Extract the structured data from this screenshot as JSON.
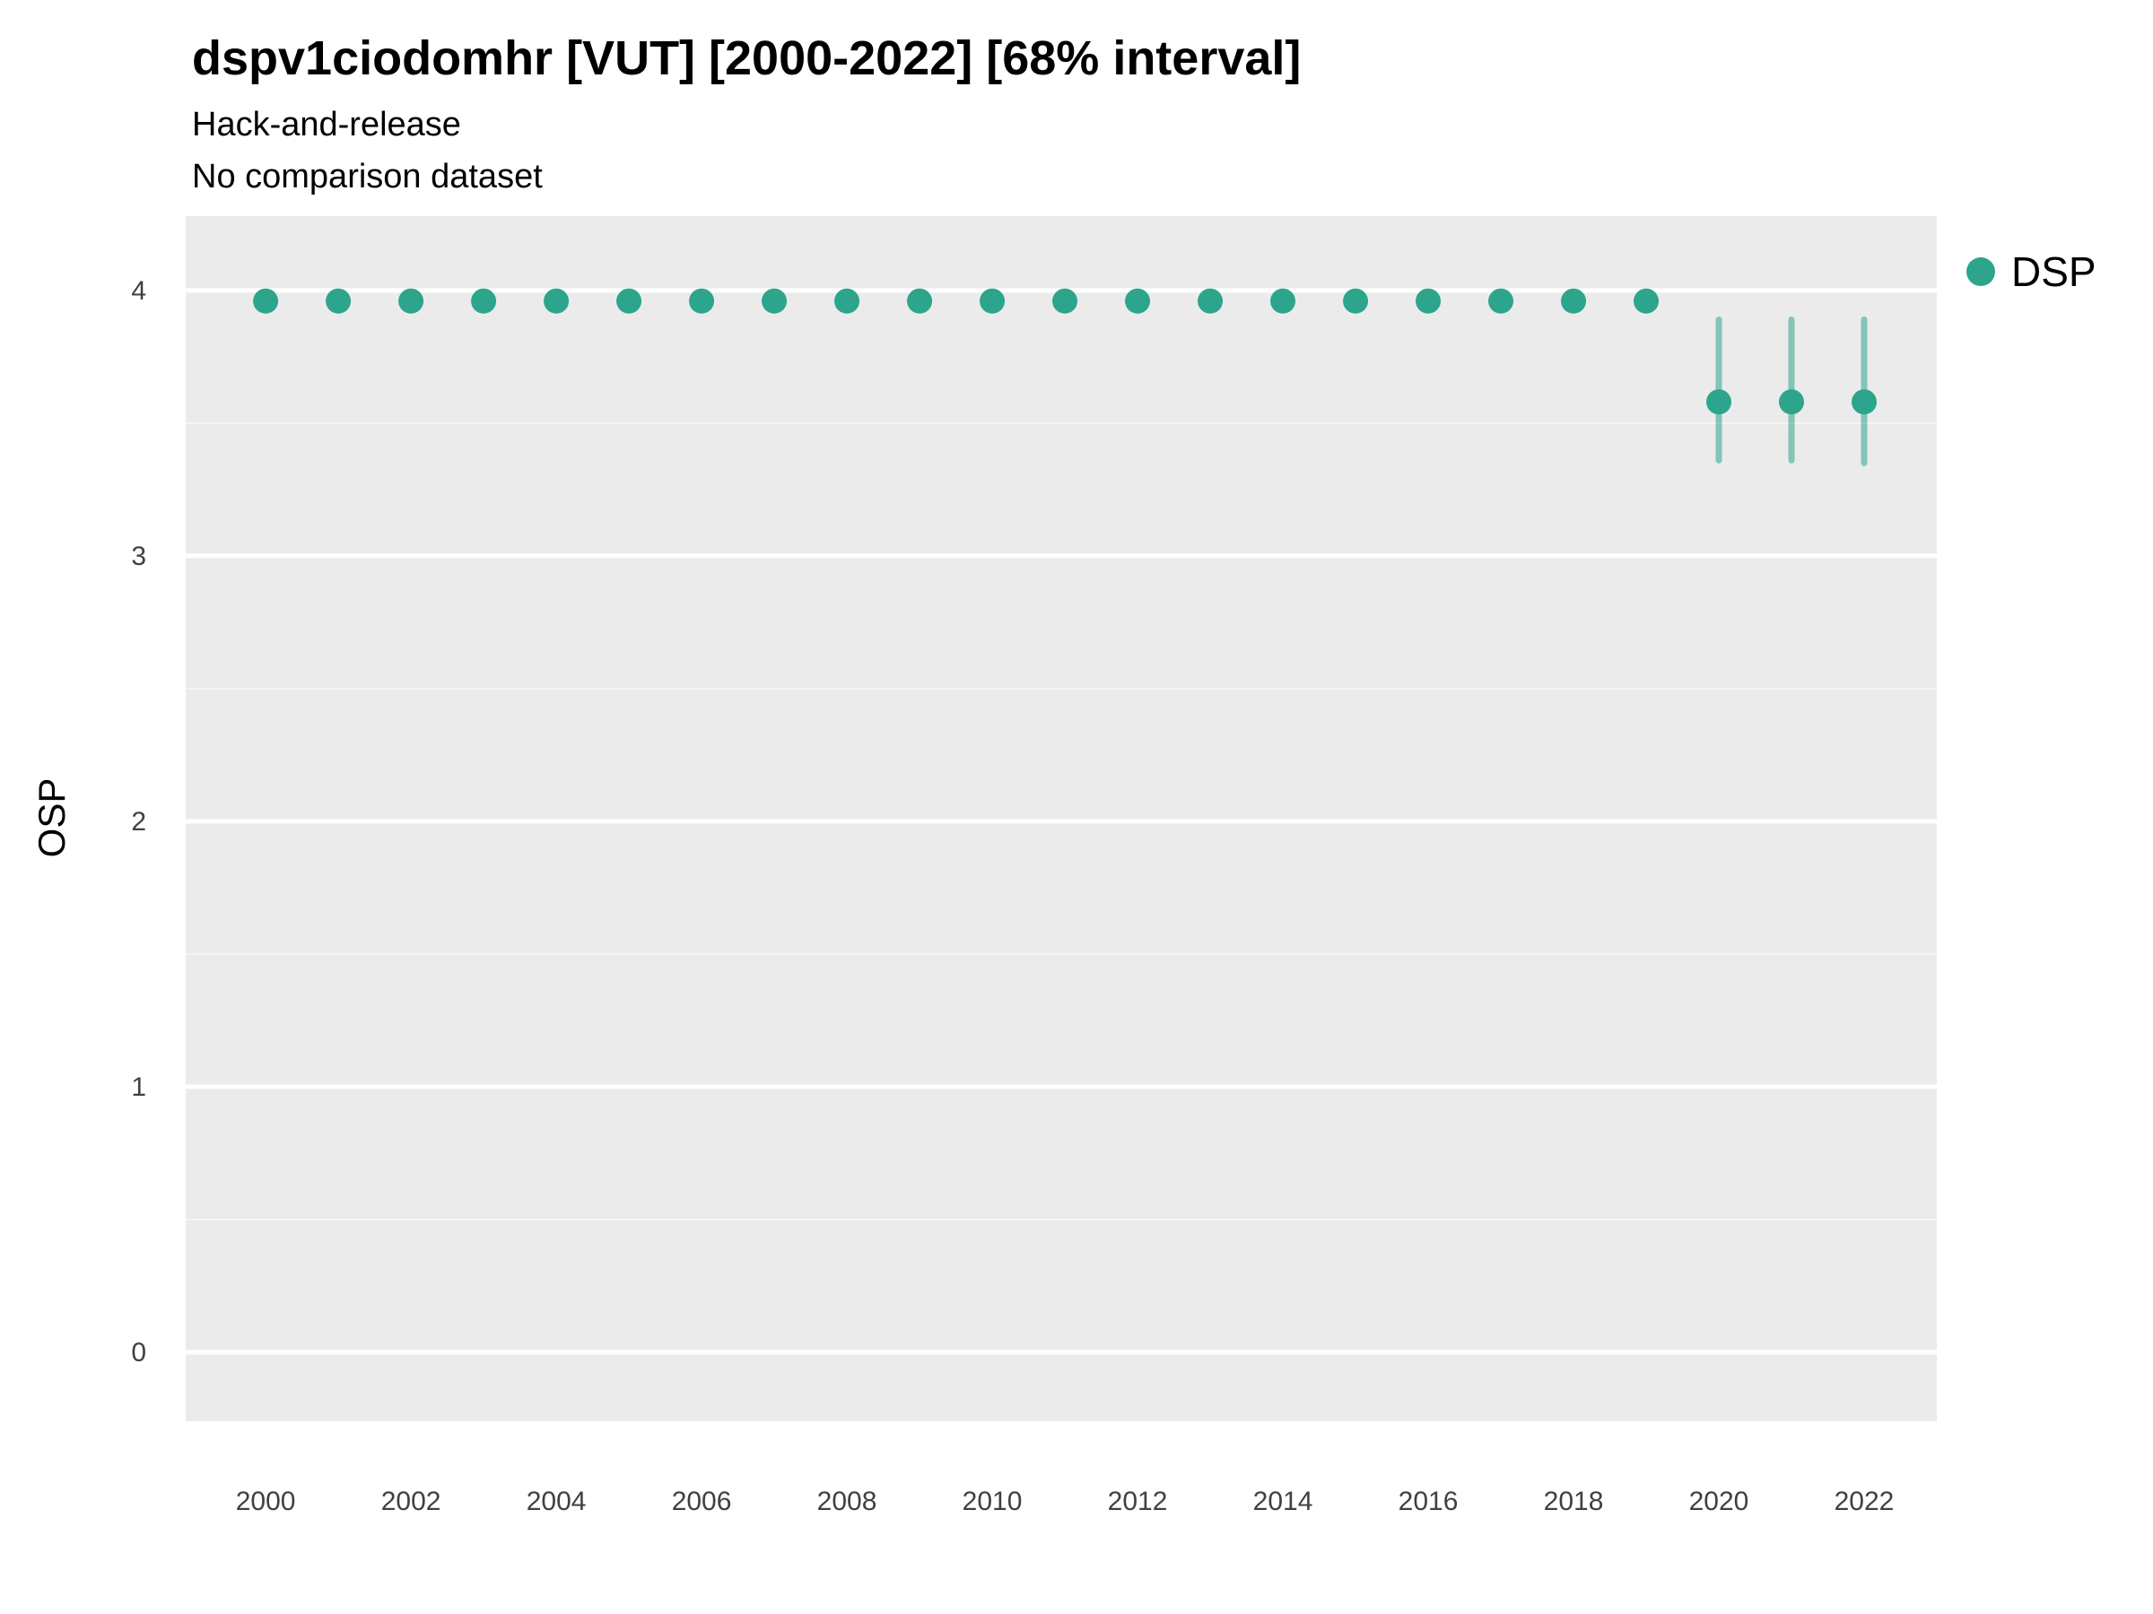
{
  "header": {
    "title": "dspv1ciodomhr [VUT] [2000-2022] [68% interval]",
    "subtitle_line1": "Hack-and-release",
    "subtitle_line2": "No comparison dataset"
  },
  "axes": {
    "y_label": "OSP",
    "x_label": ""
  },
  "legend": {
    "items": [
      {
        "label": "DSP",
        "color": "#2CA58C"
      }
    ]
  },
  "chart_data": {
    "type": "scatter",
    "title": "dspv1ciodomhr [VUT] [2000-2022] [68% interval]",
    "subtitle": [
      "Hack-and-release",
      "No comparison dataset"
    ],
    "xlabel": "",
    "ylabel": "OSP",
    "interval_level": "68%",
    "grid": "white-on-gray",
    "panel_background": "#EBEBEB",
    "legend_position": "right-top",
    "xlim": [
      1998.9,
      2023.0
    ],
    "ylim": [
      -0.26,
      4.28
    ],
    "xticks": [
      2000,
      2002,
      2004,
      2006,
      2008,
      2010,
      2012,
      2014,
      2016,
      2018,
      2020,
      2022
    ],
    "yticks": [
      0,
      1,
      2,
      3,
      4
    ],
    "series": [
      {
        "name": "DSP",
        "color": "#2CA58C",
        "points": [
          {
            "x": 2000,
            "y": 3.96,
            "lo": null,
            "hi": null
          },
          {
            "x": 2001,
            "y": 3.96,
            "lo": null,
            "hi": null
          },
          {
            "x": 2002,
            "y": 3.96,
            "lo": null,
            "hi": null
          },
          {
            "x": 2003,
            "y": 3.96,
            "lo": null,
            "hi": null
          },
          {
            "x": 2004,
            "y": 3.96,
            "lo": null,
            "hi": null
          },
          {
            "x": 2005,
            "y": 3.96,
            "lo": null,
            "hi": null
          },
          {
            "x": 2006,
            "y": 3.96,
            "lo": null,
            "hi": null
          },
          {
            "x": 2007,
            "y": 3.96,
            "lo": null,
            "hi": null
          },
          {
            "x": 2008,
            "y": 3.96,
            "lo": null,
            "hi": null
          },
          {
            "x": 2009,
            "y": 3.96,
            "lo": null,
            "hi": null
          },
          {
            "x": 2010,
            "y": 3.96,
            "lo": null,
            "hi": null
          },
          {
            "x": 2011,
            "y": 3.96,
            "lo": null,
            "hi": null
          },
          {
            "x": 2012,
            "y": 3.96,
            "lo": null,
            "hi": null
          },
          {
            "x": 2013,
            "y": 3.96,
            "lo": null,
            "hi": null
          },
          {
            "x": 2014,
            "y": 3.96,
            "lo": null,
            "hi": null
          },
          {
            "x": 2015,
            "y": 3.96,
            "lo": null,
            "hi": null
          },
          {
            "x": 2016,
            "y": 3.96,
            "lo": null,
            "hi": null
          },
          {
            "x": 2017,
            "y": 3.96,
            "lo": null,
            "hi": null
          },
          {
            "x": 2018,
            "y": 3.96,
            "lo": null,
            "hi": null
          },
          {
            "x": 2019,
            "y": 3.96,
            "lo": null,
            "hi": null
          },
          {
            "x": 2020,
            "y": 3.58,
            "lo": 3.36,
            "hi": 3.89
          },
          {
            "x": 2021,
            "y": 3.58,
            "lo": 3.36,
            "hi": 3.89
          },
          {
            "x": 2022,
            "y": 3.58,
            "lo": 3.35,
            "hi": 3.89
          }
        ]
      }
    ]
  }
}
